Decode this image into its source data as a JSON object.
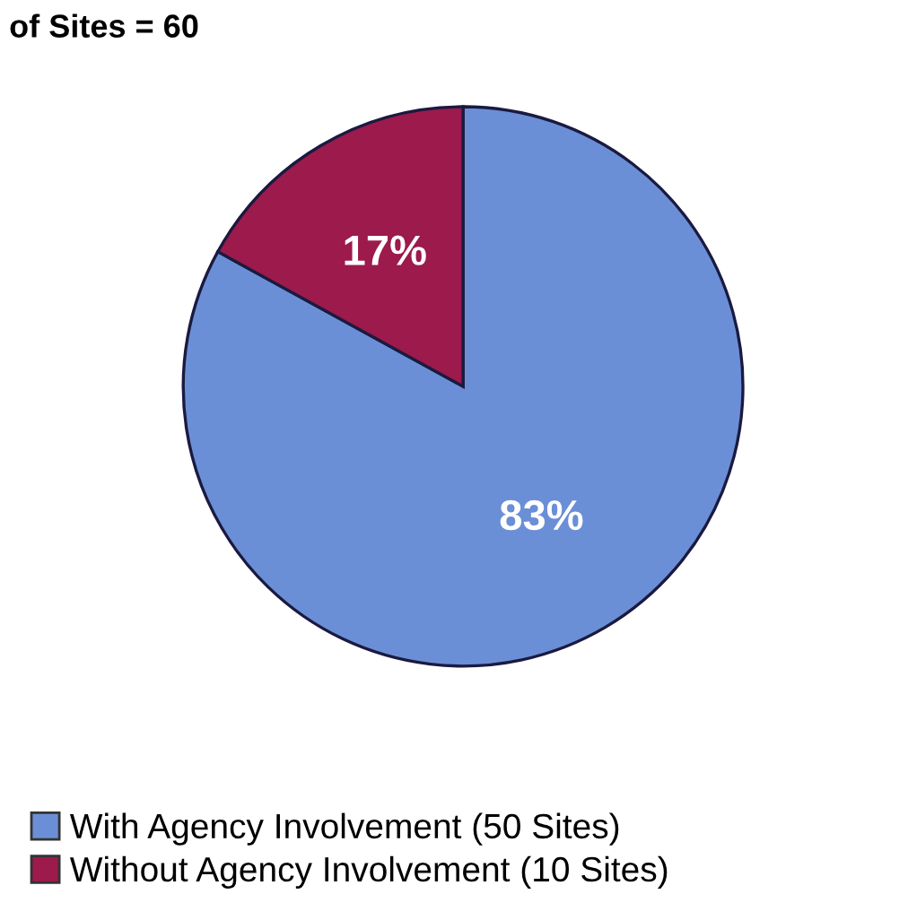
{
  "chart_data": {
    "type": "pie",
    "title": "of Sites = 60",
    "categories": [
      "With Agency Involvement (50 Sites)",
      "Without Agency Involvement (10 Sites)"
    ],
    "values": [
      83,
      17
    ],
    "colors": [
      "#6b8fd6",
      "#9c1a4c"
    ],
    "value_labels": [
      "83%",
      "17%"
    ],
    "legend": "bottom left"
  }
}
